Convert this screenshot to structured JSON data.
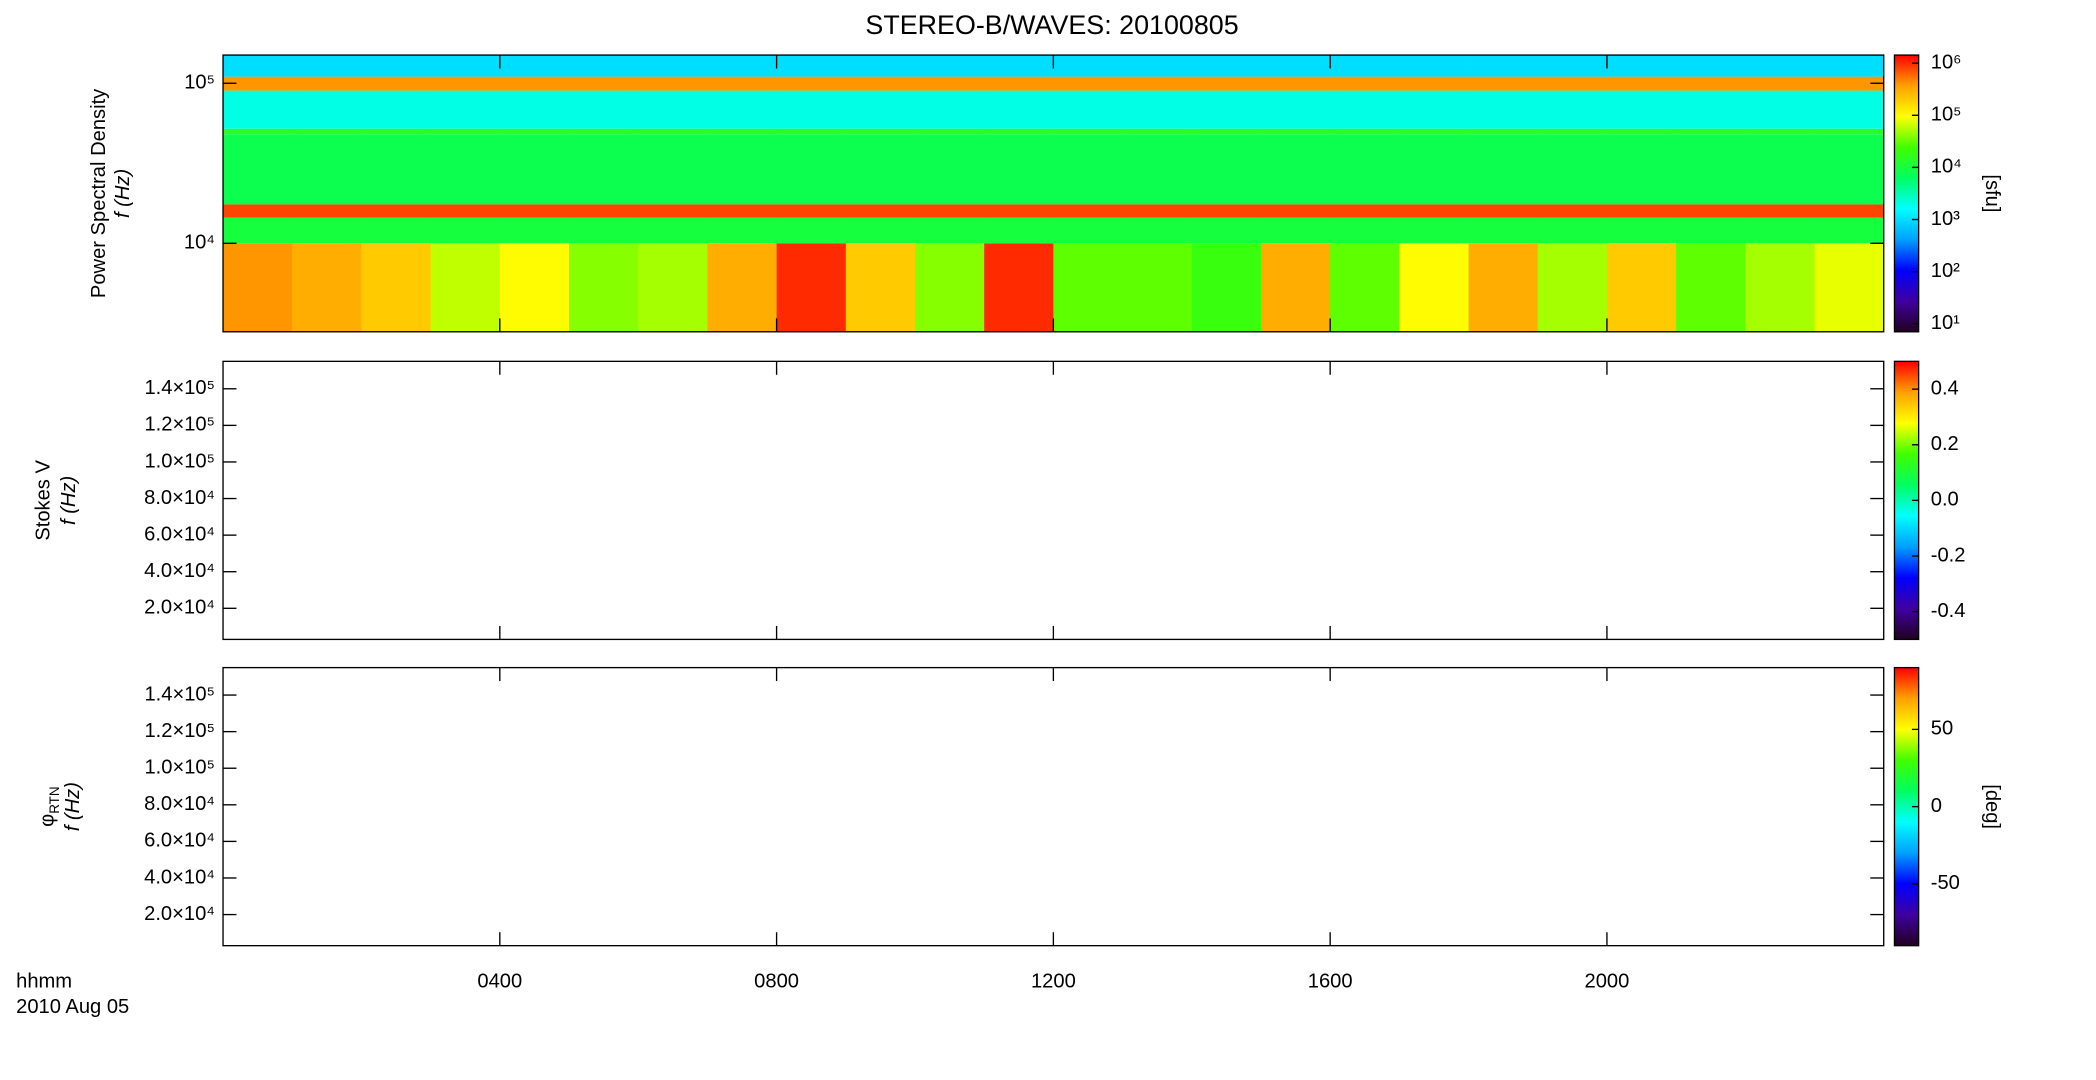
{
  "title": "STEREO-B/WAVES: 20100805",
  "x_caption": "hhmm",
  "date_caption": "2010 Aug 05",
  "x_axis": {
    "xlim": [
      0,
      24
    ],
    "xticks": [
      {
        "value": 4,
        "label": "0400"
      },
      {
        "value": 8,
        "label": "0800"
      },
      {
        "value": 12,
        "label": "1200"
      },
      {
        "value": 16,
        "label": "1600"
      },
      {
        "value": 20,
        "label": "2000"
      }
    ]
  },
  "chart_data": [
    {
      "type": "heatmap",
      "ylabel": "Power Spectral Density",
      "y_sublabel": "f (Hz)",
      "ylog": true,
      "ylim": [
        2800,
        150000
      ],
      "yticks": [
        {
          "value": 10000,
          "label": "10⁴"
        },
        {
          "value": 100000,
          "label": "10⁵"
        }
      ],
      "t_edges": [
        0,
        1,
        2,
        3,
        4,
        5,
        6,
        7,
        8,
        9,
        10,
        11,
        12,
        13,
        14,
        15,
        16,
        17,
        18,
        19,
        20,
        21,
        22,
        23,
        24
      ],
      "f_edges": [
        2800,
        10000,
        14500,
        17500,
        48000,
        52000,
        90000,
        110000,
        150000
      ],
      "z": [
        [
          400000,
          300000,
          200000,
          60000,
          100000,
          40000,
          50000,
          300000,
          1000000,
          200000,
          40000,
          1000000,
          30000,
          30000,
          20000,
          300000,
          30000,
          100000,
          300000,
          50000,
          200000,
          30000,
          50000,
          80000
        ],
        [
          10000,
          10000,
          10000,
          10000,
          10000,
          10000,
          10000,
          10000,
          10000,
          10000,
          10000,
          10000,
          10000,
          10000,
          10000,
          10000,
          10000,
          10000,
          10000,
          10000,
          10000,
          10000,
          10000,
          10000
        ],
        [
          800000,
          800000,
          800000,
          800000,
          800000,
          800000,
          800000,
          800000,
          800000,
          800000,
          800000,
          800000,
          800000,
          800000,
          800000,
          800000,
          800000,
          800000,
          800000,
          800000,
          800000,
          800000,
          800000,
          800000
        ],
        [
          8000,
          8000,
          8000,
          8000,
          8000,
          8000,
          8000,
          8000,
          8000,
          8000,
          8000,
          8000,
          8000,
          8000,
          8000,
          8000,
          8000,
          8000,
          8000,
          8000,
          8000,
          8000,
          8000,
          8000
        ],
        [
          15000,
          15000,
          15000,
          15000,
          15000,
          15000,
          15000,
          15000,
          15000,
          15000,
          15000,
          15000,
          15000,
          15000,
          15000,
          15000,
          15000,
          15000,
          15000,
          15000,
          15000,
          15000,
          15000,
          15000
        ],
        [
          2000,
          2000,
          2000,
          2000,
          2000,
          2000,
          2000,
          2000,
          2000,
          2000,
          2000,
          2000,
          2000,
          2000,
          2000,
          2000,
          2000,
          2000,
          2000,
          2000,
          2000,
          2000,
          2000,
          2000
        ],
        [
          400000,
          400000,
          400000,
          400000,
          400000,
          400000,
          400000,
          400000,
          400000,
          400000,
          400000,
          400000,
          400000,
          400000,
          400000,
          400000,
          400000,
          400000,
          400000,
          400000,
          400000,
          400000,
          400000,
          400000
        ],
        [
          1000,
          1000,
          1000,
          1000,
          1000,
          1000,
          1000,
          1000,
          1000,
          1000,
          1000,
          1000,
          1000,
          1000,
          1000,
          1000,
          1000,
          1000,
          1000,
          1000,
          1000,
          1000,
          1000,
          1000
        ]
      ],
      "colorbar": {
        "log": true,
        "lim": [
          7,
          1430000
        ],
        "label": "[sfu]",
        "ticks": [
          {
            "value": 10,
            "label": "10¹"
          },
          {
            "value": 100,
            "label": "10²"
          },
          {
            "value": 1000,
            "label": "10³"
          },
          {
            "value": 10000,
            "label": "10⁴"
          },
          {
            "value": 100000,
            "label": "10⁵"
          },
          {
            "value": 1000000,
            "label": "10⁶"
          }
        ],
        "colors": [
          "#200020",
          "#4000a0",
          "#0000ff",
          "#00a0ff",
          "#00ffff",
          "#00ff60",
          "#40ff00",
          "#ffff00",
          "#ffa000",
          "#ff0000"
        ]
      }
    },
    {
      "type": "heatmap",
      "ylabel": "Stokes V",
      "y_sublabel": "f (Hz)",
      "ylog": false,
      "ylim": [
        3000,
        155000
      ],
      "yticks": [
        {
          "value": 20000,
          "label": "2.0×10⁴"
        },
        {
          "value": 40000,
          "label": "4.0×10⁴"
        },
        {
          "value": 60000,
          "label": "6.0×10⁴"
        },
        {
          "value": 80000,
          "label": "8.0×10⁴"
        },
        {
          "value": 100000,
          "label": "1.0×10⁵"
        },
        {
          "value": 120000,
          "label": "1.2×10⁵"
        },
        {
          "value": 140000,
          "label": "1.4×10⁵"
        }
      ],
      "colorbar": {
        "log": false,
        "lim": [
          -0.5,
          0.5
        ],
        "ticks": [
          -0.4,
          -0.2,
          {
            "value": 0,
            "label": "0.0"
          },
          0.2,
          0.4
        ],
        "colors": [
          "#200020",
          "#4000a0",
          "#0000ff",
          "#00a0ff",
          "#00ffff",
          "#00ff60",
          "#40ff00",
          "#ffff00",
          "#ffa000",
          "#ff0000"
        ]
      }
    },
    {
      "type": "heatmap",
      "ylabel": "φ",
      "ylabel_sub": "RTN",
      "y_sublabel": "f (Hz)",
      "ylog": false,
      "ylim": [
        3000,
        155000
      ],
      "yticks": [
        {
          "value": 20000,
          "label": "2.0×10⁴"
        },
        {
          "value": 40000,
          "label": "4.0×10⁴"
        },
        {
          "value": 60000,
          "label": "6.0×10⁴"
        },
        {
          "value": 80000,
          "label": "8.0×10⁴"
        },
        {
          "value": 100000,
          "label": "1.0×10⁵"
        },
        {
          "value": 120000,
          "label": "1.2×10⁵"
        },
        {
          "value": 140000,
          "label": "1.4×10⁵"
        }
      ],
      "colorbar": {
        "log": false,
        "lim": [
          -90,
          90
        ],
        "label": "[deg]",
        "ticks": [
          -50,
          0,
          50
        ],
        "colors": [
          "#200020",
          "#4000a0",
          "#0000ff",
          "#00a0ff",
          "#00ffff",
          "#00ff60",
          "#40ff00",
          "#ffff00",
          "#ffa000",
          "#ff0000"
        ]
      }
    }
  ]
}
